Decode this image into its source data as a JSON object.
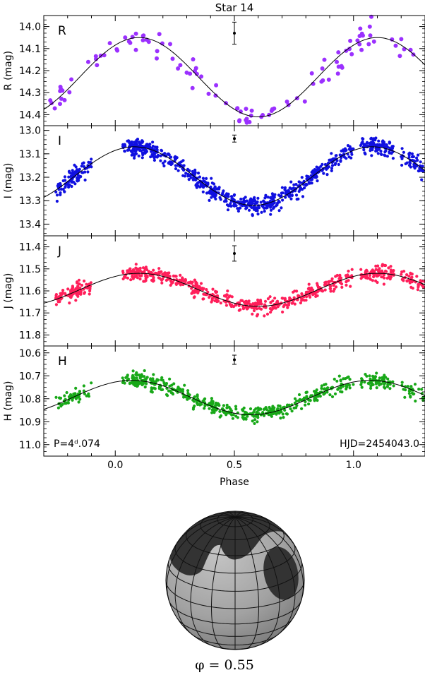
{
  "title": "Star 14",
  "xlabel": "Phase",
  "period_label": "P=4ᵈ.074",
  "hjd_label": "HJD=2454043.0",
  "phase_label": "φ = 0.55",
  "colors": {
    "R": "#9b30ff",
    "I": "#1010e0",
    "J": "#ff1f5a",
    "H": "#18a818",
    "model": "#000000"
  },
  "chart_data": [
    {
      "type": "scatter",
      "band": "R",
      "letter": "R",
      "ylabel": "R (mag)",
      "xlim": [
        -0.3,
        1.3
      ],
      "ylim": [
        14.45,
        13.95
      ],
      "x_ticks": [
        0.0,
        0.5,
        1.0
      ],
      "y_ticks": [
        14.0,
        14.1,
        14.2,
        14.3,
        14.4
      ],
      "y_tick_labels": [
        "14.0",
        "14.1",
        "14.2",
        "14.3",
        "14.4"
      ],
      "model": {
        "mean": 14.23,
        "amplitude": 0.18,
        "phase_of_max": 0.1
      },
      "scatter_sigma": 0.035,
      "n_points": 110,
      "errorbar": {
        "x": 0.5,
        "y": 14.03,
        "err": 0.05
      },
      "series": [
        {
          "values": [
            [
              -0.28,
              14.33
            ],
            [
              -0.25,
              14.36
            ],
            [
              -0.2,
              14.27
            ],
            [
              -0.15,
              14.2
            ],
            [
              -0.1,
              14.14
            ],
            [
              -0.05,
              14.1
            ],
            [
              0.0,
              14.07
            ],
            [
              0.05,
              14.06
            ],
            [
              0.1,
              14.04
            ],
            [
              0.15,
              14.03
            ],
            [
              0.2,
              14.06
            ],
            [
              0.25,
              14.1
            ],
            [
              0.3,
              14.18
            ],
            [
              0.35,
              14.25
            ],
            [
              0.4,
              14.3
            ],
            [
              0.45,
              14.35
            ],
            [
              0.5,
              14.39
            ],
            [
              0.55,
              14.41
            ],
            [
              0.6,
              14.42
            ],
            [
              0.65,
              14.4
            ],
            [
              0.7,
              14.35
            ],
            [
              0.75,
              14.3
            ],
            [
              0.8,
              14.25
            ],
            [
              0.85,
              14.18
            ],
            [
              0.9,
              14.12
            ],
            [
              0.95,
              14.08
            ],
            [
              1.0,
              14.06
            ],
            [
              1.05,
              14.05
            ],
            [
              1.1,
              14.04
            ],
            [
              1.15,
              14.05
            ],
            [
              1.2,
              14.08
            ],
            [
              1.25,
              14.12
            ],
            [
              1.28,
              14.16
            ]
          ]
        }
      ]
    },
    {
      "type": "scatter",
      "band": "I",
      "letter": "I",
      "ylabel": "I (mag)",
      "xlim": [
        -0.3,
        1.3
      ],
      "ylim": [
        13.45,
        12.98
      ],
      "x_ticks": [
        0.0,
        0.5,
        1.0
      ],
      "y_ticks": [
        13.0,
        13.1,
        13.2,
        13.3,
        13.4
      ],
      "y_tick_labels": [
        "13.0",
        "13.1",
        "13.2",
        "13.3",
        "13.4"
      ],
      "model": {
        "mean": 13.195,
        "amplitude": 0.125,
        "phase_of_max": 0.08
      },
      "scatter_sigma": 0.018,
      "n_points": 900,
      "errorbar": {
        "x": 0.5,
        "y": 13.035,
        "err": 0.015
      },
      "series": [
        {
          "values": [
            [
              -0.28,
              13.29
            ],
            [
              -0.2,
              13.23
            ],
            [
              -0.15,
              13.16
            ],
            [
              -0.1,
              13.12
            ],
            [
              0.0,
              13.08
            ],
            [
              0.05,
              13.06
            ],
            [
              0.1,
              13.06
            ],
            [
              0.2,
              13.09
            ],
            [
              0.3,
              13.14
            ],
            [
              0.4,
              13.21
            ],
            [
              0.5,
              13.28
            ],
            [
              0.55,
              13.31
            ],
            [
              0.6,
              13.33
            ],
            [
              0.65,
              13.3
            ],
            [
              0.7,
              13.27
            ],
            [
              0.8,
              13.2
            ],
            [
              0.85,
              13.16
            ],
            [
              0.9,
              13.12
            ],
            [
              1.0,
              13.08
            ],
            [
              1.1,
              13.06
            ],
            [
              1.2,
              13.1
            ],
            [
              1.28,
              13.13
            ]
          ]
        }
      ]
    },
    {
      "type": "scatter",
      "band": "J",
      "letter": "J",
      "ylabel": "J (mag)",
      "xlim": [
        -0.3,
        1.3
      ],
      "ylim": [
        11.85,
        11.35
      ],
      "x_ticks": [
        0.0,
        0.5,
        1.0
      ],
      "y_ticks": [
        11.4,
        11.5,
        11.6,
        11.7,
        11.8
      ],
      "y_tick_labels": [
        "11.4",
        "11.5",
        "11.6",
        "11.7",
        "11.8"
      ],
      "model": {
        "mean": 11.595,
        "amplitude": 0.075,
        "phase_of_max": 0.1
      },
      "scatter_sigma": 0.016,
      "n_points": 700,
      "errorbar": {
        "x": 0.5,
        "y": 11.43,
        "err": 0.035
      },
      "series": [
        {
          "values": [
            [
              -0.28,
              11.64
            ],
            [
              -0.2,
              11.61
            ],
            [
              -0.1,
              11.57
            ],
            [
              0.0,
              11.53
            ],
            [
              0.1,
              11.53
            ],
            [
              0.2,
              11.55
            ],
            [
              0.3,
              11.58
            ],
            [
              0.4,
              11.62
            ],
            [
              0.5,
              11.66
            ],
            [
              0.6,
              11.67
            ],
            [
              0.7,
              11.66
            ],
            [
              0.8,
              11.62
            ],
            [
              0.9,
              11.57
            ],
            [
              1.0,
              11.53
            ],
            [
              1.1,
              11.53
            ],
            [
              1.2,
              11.55
            ],
            [
              1.28,
              11.58
            ]
          ]
        }
      ]
    },
    {
      "type": "scatter",
      "band": "H",
      "letter": "H",
      "ylabel": "H (mag)",
      "xlim": [
        -0.3,
        1.3
      ],
      "ylim": [
        11.05,
        10.57
      ],
      "x_ticks": [
        0.0,
        0.5,
        1.0
      ],
      "y_ticks": [
        10.6,
        10.7,
        10.8,
        10.9,
        11.0
      ],
      "y_tick_labels": [
        "10.6",
        "10.7",
        "10.8",
        "10.9",
        "11.0"
      ],
      "model": {
        "mean": 10.795,
        "amplitude": 0.075,
        "phase_of_max": 0.07
      },
      "scatter_sigma": 0.016,
      "n_points": 600,
      "errorbar": {
        "x": 0.5,
        "y": 10.63,
        "err": 0.02
      },
      "series": [
        {
          "values": [
            [
              -0.28,
              10.85
            ],
            [
              -0.2,
              10.81
            ],
            [
              -0.1,
              10.76
            ],
            [
              0.0,
              10.73
            ],
            [
              0.1,
              10.72
            ],
            [
              0.2,
              10.74
            ],
            [
              0.3,
              10.78
            ],
            [
              0.4,
              10.82
            ],
            [
              0.5,
              10.85
            ],
            [
              0.6,
              10.87
            ],
            [
              0.7,
              10.84
            ],
            [
              0.8,
              10.8
            ],
            [
              0.9,
              10.75
            ],
            [
              1.0,
              10.73
            ],
            [
              1.1,
              10.72
            ],
            [
              1.2,
              10.74
            ],
            [
              1.28,
              10.77
            ]
          ]
        }
      ]
    }
  ]
}
